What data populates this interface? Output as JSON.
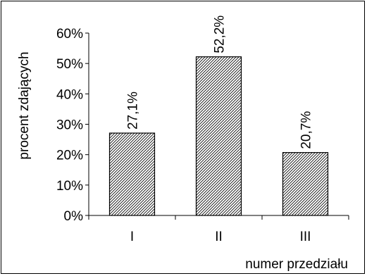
{
  "chart_data": {
    "type": "bar",
    "categories": [
      "I",
      "II",
      "III"
    ],
    "values": [
      27.1,
      52.2,
      20.7
    ],
    "value_labels": [
      "27,1%",
      "52,2%",
      "20,7%"
    ],
    "title": "",
    "xlabel": "numer przedziału",
    "ylabel": "procent zdających",
    "ylim": [
      0,
      60
    ],
    "yticks": [
      0,
      10,
      20,
      30,
      40,
      50,
      60
    ],
    "ytick_labels": [
      "0%",
      "10%",
      "20%",
      "30%",
      "40%",
      "50%",
      "60%"
    ],
    "grid": false,
    "legend": "none",
    "bar_fill": "diagonal-hatch",
    "colors": {
      "bar_stroke": "#000000",
      "hatch": "#000000",
      "background": "#ffffff"
    }
  }
}
